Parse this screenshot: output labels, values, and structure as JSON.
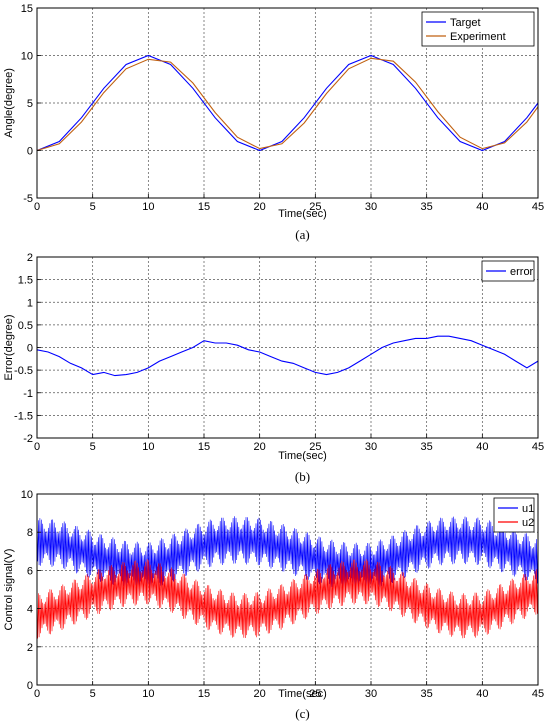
{
  "chart_data": [
    {
      "type": "line",
      "caption": "(a)",
      "xlabel": "Time(sec)",
      "ylabel": "Angle(degree)",
      "xlim": [
        0,
        45
      ],
      "ylim": [
        -5,
        15
      ],
      "xticks": [
        0,
        5,
        10,
        15,
        20,
        25,
        30,
        35,
        40,
        45
      ],
      "yticks": [
        -5,
        0,
        5,
        10,
        15
      ],
      "grid": true,
      "legend_position": "top-right",
      "series": [
        {
          "name": "Target",
          "color": "#0000ff",
          "x": [
            0,
            2,
            4,
            6,
            8,
            10,
            12,
            14,
            16,
            18,
            20,
            22,
            24,
            26,
            28,
            30,
            32,
            34,
            36,
            38,
            40,
            42,
            44,
            45
          ],
          "values": [
            0,
            0.95,
            3.45,
            6.55,
            9.05,
            10,
            9.05,
            6.55,
            3.45,
            0.95,
            0,
            0.95,
            3.45,
            6.55,
            9.05,
            10,
            9.05,
            6.55,
            3.45,
            0.95,
            0,
            0.95,
            3.45,
            5.0
          ]
        },
        {
          "name": "Experiment",
          "color": "#c06010",
          "x": [
            0,
            2,
            4,
            6,
            8,
            10,
            12,
            14,
            16,
            18,
            20,
            22,
            24,
            26,
            28,
            30,
            32,
            34,
            36,
            38,
            40,
            42,
            44,
            45
          ],
          "values": [
            0,
            0.7,
            3.0,
            6.1,
            8.6,
            9.6,
            9.3,
            7.1,
            4.0,
            1.4,
            0.2,
            0.7,
            2.9,
            6.0,
            8.6,
            9.7,
            9.4,
            7.2,
            4.1,
            1.4,
            0.2,
            0.8,
            3.0,
            4.6
          ]
        }
      ]
    },
    {
      "type": "line",
      "caption": "(b)",
      "xlabel": "Time(sec)",
      "ylabel": "Error(degree)",
      "xlim": [
        0,
        45
      ],
      "ylim": [
        -2,
        2
      ],
      "xticks": [
        0,
        5,
        10,
        15,
        20,
        25,
        30,
        35,
        40,
        45
      ],
      "yticks": [
        -2,
        -1.5,
        -1,
        -0.5,
        0,
        0.5,
        1,
        1.5,
        2
      ],
      "grid": true,
      "legend_position": "top-right",
      "series": [
        {
          "name": "error",
          "color": "#0000ff",
          "x": [
            0,
            1,
            2,
            3,
            4,
            5,
            6,
            7,
            8,
            9,
            10,
            11,
            12,
            13,
            14,
            15,
            16,
            17,
            18,
            19,
            20,
            21,
            22,
            23,
            24,
            25,
            26,
            27,
            28,
            29,
            30,
            31,
            32,
            33,
            34,
            35,
            36,
            37,
            38,
            39,
            40,
            41,
            42,
            43,
            44,
            45
          ],
          "values": [
            -0.05,
            -0.1,
            -0.2,
            -0.35,
            -0.45,
            -0.6,
            -0.55,
            -0.62,
            -0.6,
            -0.55,
            -0.45,
            -0.3,
            -0.2,
            -0.1,
            0.0,
            0.15,
            0.1,
            0.1,
            0.05,
            -0.05,
            -0.1,
            -0.2,
            -0.3,
            -0.35,
            -0.45,
            -0.55,
            -0.6,
            -0.55,
            -0.45,
            -0.3,
            -0.15,
            0.0,
            0.1,
            0.15,
            0.2,
            0.2,
            0.25,
            0.25,
            0.2,
            0.15,
            0.05,
            -0.05,
            -0.15,
            -0.3,
            -0.45,
            -0.3
          ]
        }
      ]
    },
    {
      "type": "line",
      "caption": "(c)",
      "xlabel": "Time(sec)",
      "ylabel": "Control signal(V)",
      "xlim": [
        0,
        45
      ],
      "ylim": [
        0,
        10
      ],
      "xticks": [
        0,
        5,
        10,
        15,
        20,
        25,
        30,
        35,
        40,
        45
      ],
      "yticks": [
        0,
        2,
        4,
        6,
        8,
        10
      ],
      "grid": true,
      "legend_position": "top-right",
      "series": [
        {
          "name": "u1",
          "color": "#0000ff",
          "x": [
            0,
            2,
            4,
            6,
            8,
            10,
            12,
            14,
            16,
            18,
            20,
            22,
            24,
            26,
            28,
            30,
            32,
            34,
            36,
            38,
            40,
            42,
            44,
            45
          ],
          "values": [
            7.5,
            7.4,
            7.0,
            6.6,
            6.3,
            6.2,
            6.6,
            7.1,
            7.5,
            7.6,
            7.5,
            7.2,
            6.8,
            6.4,
            6.2,
            6.2,
            6.6,
            7.1,
            7.5,
            7.6,
            7.5,
            7.1,
            6.7,
            6.5
          ]
        },
        {
          "name": "u2",
          "color": "#ff0000",
          "x": [
            0,
            2,
            4,
            6,
            8,
            10,
            12,
            14,
            16,
            18,
            20,
            22,
            24,
            26,
            28,
            30,
            32,
            34,
            36,
            38,
            40,
            42,
            44,
            45
          ],
          "values": [
            3.6,
            4.0,
            4.5,
            5.0,
            5.3,
            5.4,
            5.0,
            4.4,
            3.9,
            3.6,
            3.7,
            4.1,
            4.6,
            5.1,
            5.4,
            5.4,
            5.0,
            4.4,
            3.9,
            3.6,
            3.7,
            4.2,
            4.7,
            4.9
          ]
        }
      ]
    }
  ]
}
